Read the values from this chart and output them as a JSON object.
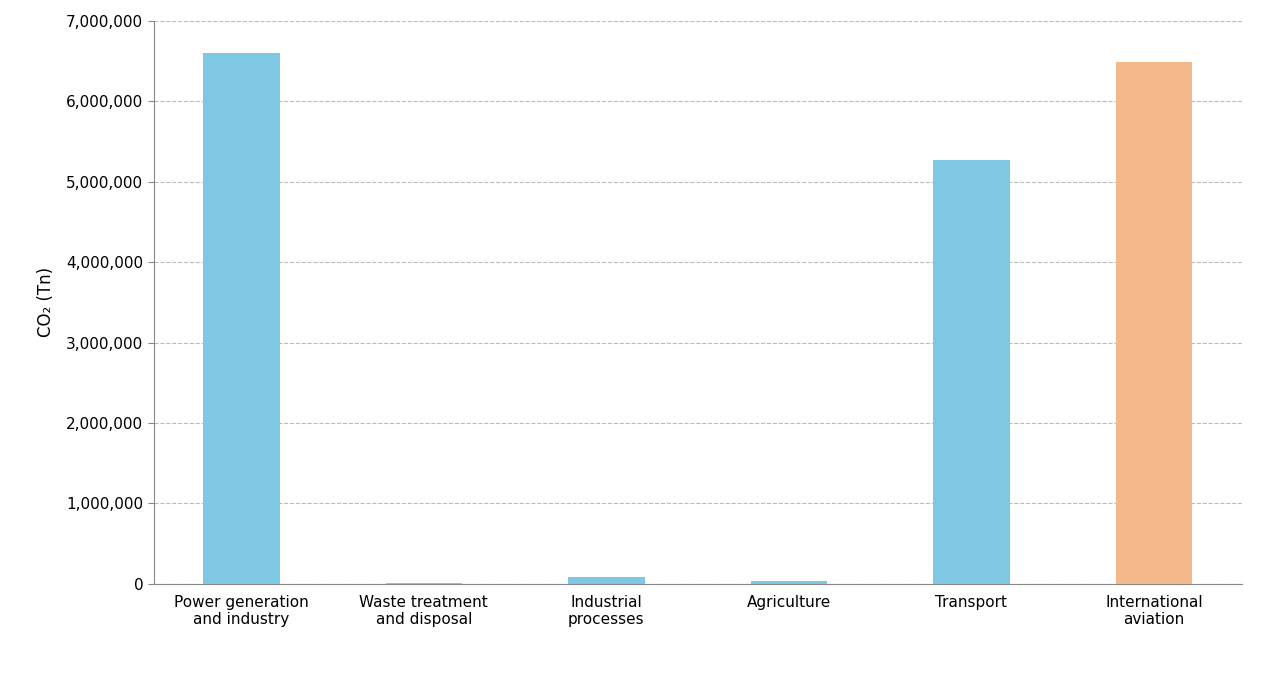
{
  "categories": [
    "Power generation\nand industry",
    "Waste treatment\nand disposal",
    "Industrial\nprocesses",
    "Agriculture",
    "Transport",
    "International\naviation"
  ],
  "values": [
    6600000,
    15000,
    90000,
    40000,
    5270000,
    6480000
  ],
  "bar_colors": [
    "#7EC8E3",
    "#7EC8E3",
    "#7EC8E3",
    "#7EC8E3",
    "#7EC8E3",
    "#F4B88A"
  ],
  "ylabel": "CO₂ (Tn)",
  "ylim": [
    0,
    7000000
  ],
  "yticks": [
    0,
    1000000,
    2000000,
    3000000,
    4000000,
    5000000,
    6000000,
    7000000
  ],
  "background_color": "#ffffff",
  "grid_color": "#bbbbbb",
  "ylabel_fontsize": 12,
  "tick_fontsize": 11,
  "xlabel_fontsize": 11,
  "bar_width": 0.42,
  "spine_color": "#888888"
}
